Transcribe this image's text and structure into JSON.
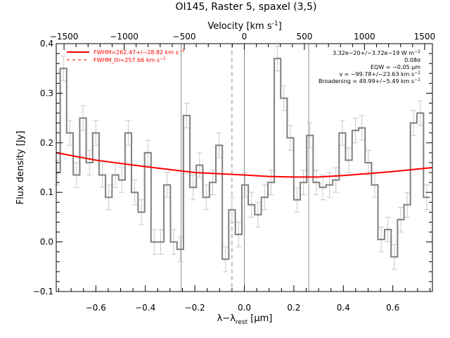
{
  "chart_data": {
    "type": "line",
    "title": "OI145, Raster 5, spaxel (3,5)",
    "xlabel_main": "λ−λ",
    "xlabel_sub": "rest",
    "xlabel_unit": " [μm]",
    "ylabel": "Flux density [Jy]",
    "top_label_main": "Velocity [km s",
    "top_label_sup": "-1",
    "top_label_end": "]",
    "xlim": [
      -0.76,
      0.76
    ],
    "ylim": [
      -0.1,
      0.4
    ],
    "top_xlim": [
      -1565,
      1565
    ],
    "x_ticks": [
      -0.6,
      -0.4,
      -0.2,
      0.0,
      0.2,
      0.4,
      0.6
    ],
    "x_tick_labels": [
      "−0.6",
      "−0.4",
      "−0.2",
      "0.0",
      "0.2",
      "0.4",
      "0.6"
    ],
    "y_ticks": [
      -0.1,
      0.0,
      0.1,
      0.2,
      0.3,
      0.4
    ],
    "y_tick_labels": [
      "−0.1",
      "0.0",
      "0.1",
      "0.2",
      "0.3",
      "0.4"
    ],
    "top_ticks": [
      -1500,
      -1000,
      -500,
      0,
      500,
      1000,
      1500
    ],
    "top_tick_labels": [
      "−1500",
      "−1000",
      "−500",
      "0",
      "500",
      "1000",
      "1500"
    ],
    "vertical_lines_solid": [
      -0.255,
      0.0,
      0.26
    ],
    "vertical_line_dashed": -0.05,
    "series": [
      {
        "name": "spectrum",
        "style": "histogram-step",
        "color": "#808080",
        "bin_width": 0.0262,
        "x": [
          -0.757,
          -0.731,
          -0.705,
          -0.678,
          -0.652,
          -0.626,
          -0.6,
          -0.574,
          -0.548,
          -0.521,
          -0.495,
          -0.469,
          -0.443,
          -0.416,
          -0.39,
          -0.364,
          -0.338,
          -0.312,
          -0.285,
          -0.259,
          -0.233,
          -0.207,
          -0.181,
          -0.154,
          -0.128,
          -0.102,
          -0.076,
          -0.05,
          -0.023,
          0.003,
          0.029,
          0.055,
          0.082,
          0.108,
          0.134,
          0.16,
          0.186,
          0.213,
          0.239,
          0.265,
          0.291,
          0.317,
          0.344,
          0.37,
          0.396,
          0.422,
          0.449,
          0.475,
          0.501,
          0.527,
          0.553,
          0.58,
          0.606,
          0.632,
          0.658,
          0.684,
          0.711,
          0.737
        ],
        "y": [
          0.14,
          0.35,
          0.22,
          0.135,
          0.25,
          0.16,
          0.22,
          0.135,
          0.09,
          0.135,
          0.125,
          0.22,
          0.1,
          0.06,
          0.18,
          0.0,
          0.0,
          0.115,
          0.0,
          -0.015,
          0.255,
          0.11,
          0.155,
          0.09,
          0.12,
          0.195,
          -0.035,
          0.065,
          0.015,
          0.115,
          0.075,
          0.055,
          0.09,
          0.12,
          0.37,
          0.29,
          0.21,
          0.085,
          0.12,
          0.215,
          0.12,
          0.11,
          0.115,
          0.125,
          0.22,
          0.165,
          0.225,
          0.23,
          0.16,
          0.115,
          0.005,
          0.025,
          -0.03,
          0.045,
          0.075,
          0.24,
          0.26,
          0.09
        ],
        "error": 0.025
      },
      {
        "name": "FWHM=262.47+/-28.82 km s-1",
        "style": "fit",
        "color": "#ff0000",
        "x": [
          -0.76,
          -0.6,
          -0.4,
          -0.2,
          0.0,
          0.1,
          0.2,
          0.3,
          0.4,
          0.5,
          0.6,
          0.76
        ],
        "y": [
          0.18,
          0.165,
          0.152,
          0.14,
          0.135,
          0.132,
          0.131,
          0.131,
          0.134,
          0.138,
          0.142,
          0.15
        ]
      }
    ],
    "legend": [
      {
        "label": "FWHM=262.47+/−28.82 km s",
        "sup": "−1",
        "line": "solid",
        "color": "#ff0000"
      },
      {
        "label": "FWHM_th=257.66 km s",
        "sup": "−1",
        "line": "dashed",
        "color": "#ff0000"
      }
    ],
    "legend_placement": "top-left",
    "annotations": [
      {
        "text": "3.32e−20+/−3.72e−19 W m",
        "sup": "−2"
      },
      {
        "text": "0.08σ",
        "sup": ""
      },
      {
        "text": "EQW = −0.05 μm",
        "sup": ""
      },
      {
        "text": "v = −99.78+/−23.63 km s",
        "sup": "−1"
      },
      {
        "text": "Broadening = 49.99+/−5.49 km s",
        "sup": "−1"
      }
    ],
    "annotation_placement": "top-right"
  }
}
